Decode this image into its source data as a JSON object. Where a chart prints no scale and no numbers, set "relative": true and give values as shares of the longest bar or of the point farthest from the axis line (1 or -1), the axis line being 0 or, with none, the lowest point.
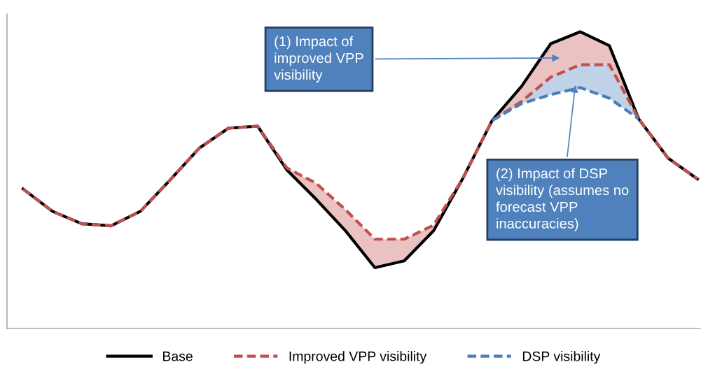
{
  "chart_data": {
    "type": "line",
    "relative": true,
    "categories": [
      null,
      null,
      null,
      null,
      null,
      null,
      null,
      null,
      null,
      null,
      null,
      null,
      null,
      null,
      null,
      null,
      null,
      null,
      null,
      null,
      null,
      null,
      null,
      null
    ],
    "series": [
      {
        "name": "Base",
        "color": "#000000",
        "line_style": "solid",
        "values": [
          0.47,
          0.395,
          0.353,
          0.346,
          0.395,
          0.499,
          0.607,
          0.675,
          0.682,
          0.534,
          0.435,
          0.329,
          0.205,
          0.228,
          0.329,
          0.506,
          0.701,
          0.816,
          0.96,
          1.0,
          0.953,
          0.706,
          0.574,
          0.504
        ]
      },
      {
        "name": "Improved VPP visibility",
        "color": "#c0504d",
        "line_style": "dashed",
        "values": [
          0.47,
          0.395,
          0.353,
          0.346,
          0.395,
          0.499,
          0.607,
          0.675,
          0.682,
          0.541,
          0.489,
          0.4,
          0.301,
          0.301,
          0.348,
          0.506,
          0.701,
          0.765,
          0.847,
          0.889,
          0.889,
          0.706,
          0.574,
          0.504
        ],
        "lower": [
          null,
          null,
          null,
          null,
          null,
          null,
          null,
          null,
          0.682,
          0.534,
          0.435,
          0.329,
          0.205,
          0.228,
          0.329,
          0.506,
          0.701,
          0.765,
          0.847,
          0.889,
          0.889,
          0.706,
          null,
          null
        ],
        "upper": [
          null,
          null,
          null,
          null,
          null,
          null,
          null,
          null,
          0.682,
          0.541,
          0.489,
          0.4,
          0.301,
          0.301,
          0.348,
          0.506,
          0.701,
          0.816,
          0.96,
          1.0,
          0.953,
          0.706,
          null,
          null
        ]
      },
      {
        "name": "DSP visibility",
        "color": "#4a7ebb",
        "line_style": "dashed",
        "values": [
          null,
          null,
          null,
          null,
          null,
          null,
          null,
          null,
          null,
          null,
          null,
          null,
          null,
          null,
          null,
          null,
          0.701,
          0.758,
          0.788,
          0.812,
          0.776,
          0.706,
          null,
          null
        ],
        "lower": [
          null,
          null,
          null,
          null,
          null,
          null,
          null,
          null,
          null,
          null,
          null,
          null,
          null,
          null,
          null,
          null,
          0.701,
          0.758,
          0.788,
          0.812,
          0.776,
          0.706,
          null,
          null
        ],
        "upper": [
          null,
          null,
          null,
          null,
          null,
          null,
          null,
          null,
          null,
          null,
          null,
          null,
          null,
          null,
          null,
          null,
          0.701,
          0.765,
          0.847,
          0.889,
          0.889,
          0.706,
          null,
          null
        ]
      }
    ],
    "annotations": [
      "(1) Impact of\nimproved VPP\nvisibility",
      "(2) Impact of DSP\nvisibility (assumes no\nforecast VPP\ninaccuracies)"
    ],
    "legend": "bottom",
    "marker": "none"
  }
}
